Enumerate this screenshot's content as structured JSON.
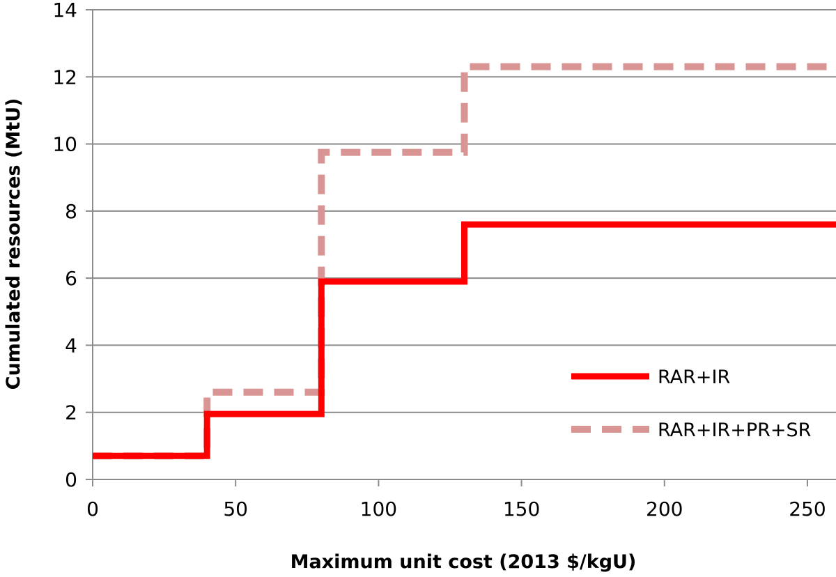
{
  "chart_data": {
    "type": "line",
    "step": "after",
    "xlabel": "Maximum unit cost (2013 $/kgU)",
    "ylabel": "Cumulated resources (MtU)",
    "xlim": [
      0,
      260
    ],
    "ylim": [
      0,
      14
    ],
    "xticks": [
      0,
      50,
      100,
      150,
      200,
      250
    ],
    "yticks": [
      0,
      2,
      4,
      6,
      8,
      10,
      12,
      14
    ],
    "grid": "horizontal",
    "legend_position": "bottom-right",
    "series": [
      {
        "name": "RAR+IR",
        "color": "#ff0000",
        "style": "solid",
        "x": [
          0,
          40,
          80,
          130,
          260
        ],
        "y": [
          0.7,
          1.95,
          5.9,
          7.6,
          7.6
        ]
      },
      {
        "name": "RAR+IR+PR+SR",
        "color": "#d99594",
        "style": "dashed",
        "x": [
          0,
          40,
          80,
          130,
          260
        ],
        "y": [
          0.7,
          2.6,
          9.75,
          12.3,
          12.3
        ]
      }
    ]
  }
}
